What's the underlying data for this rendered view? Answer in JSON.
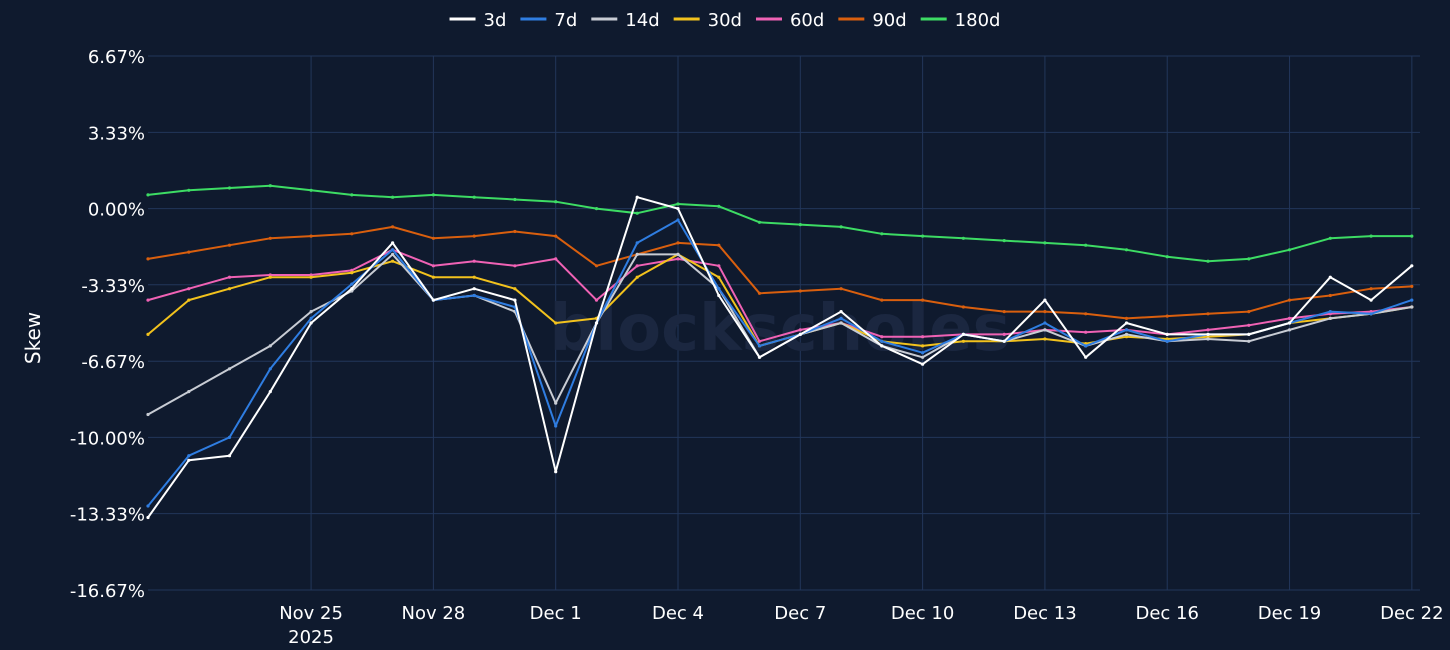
{
  "chart_data": {
    "type": "line",
    "ylabel": "Skew",
    "watermark": "blockscholes",
    "yticks": [
      "6.67%",
      "3.33%",
      "0.00%",
      "-3.33%",
      "-6.67%",
      "-10.00%",
      "-13.33%",
      "-16.67%"
    ],
    "ytick_values": [
      6.67,
      3.33,
      0.0,
      -3.33,
      -6.67,
      -10.0,
      -13.33,
      -16.67
    ],
    "ylim": [
      -16.67,
      6.67
    ],
    "xlim": [
      "2025-11-21",
      "2025-12-22.2"
    ],
    "xticks": [
      {
        "date": "2025-11-25",
        "label": "Nov 25",
        "sublabel": "2025"
      },
      {
        "date": "2025-11-28",
        "label": "Nov 28"
      },
      {
        "date": "2025-12-01",
        "label": "Dec 1"
      },
      {
        "date": "2025-12-04",
        "label": "Dec 4"
      },
      {
        "date": "2025-12-07",
        "label": "Dec 7"
      },
      {
        "date": "2025-12-10",
        "label": "Dec 10"
      },
      {
        "date": "2025-12-13",
        "label": "Dec 13"
      },
      {
        "date": "2025-12-16",
        "label": "Dec 16"
      },
      {
        "date": "2025-12-19",
        "label": "Dec 19"
      },
      {
        "date": "2025-12-22",
        "label": "Dec 22"
      }
    ],
    "grid": true,
    "legend_position": "top",
    "x": [
      "2025-11-21",
      "2025-11-22",
      "2025-11-23",
      "2025-11-24",
      "2025-11-25",
      "2025-11-26",
      "2025-11-27",
      "2025-11-28",
      "2025-11-29",
      "2025-11-30",
      "2025-12-01",
      "2025-12-02",
      "2025-12-03",
      "2025-12-04",
      "2025-12-05",
      "2025-12-06",
      "2025-12-07",
      "2025-12-08",
      "2025-12-09",
      "2025-12-10",
      "2025-12-11",
      "2025-12-12",
      "2025-12-13",
      "2025-12-14",
      "2025-12-15",
      "2025-12-16",
      "2025-12-17",
      "2025-12-18",
      "2025-12-19",
      "2025-12-20",
      "2025-12-21",
      "2025-12-22"
    ],
    "series": [
      {
        "name": "3d",
        "color": "#ffffff",
        "values": [
          -13.5,
          -11.0,
          -10.8,
          -8.0,
          -5.0,
          -3.5,
          -1.5,
          -4.0,
          -3.5,
          -4.0,
          -11.5,
          -5.0,
          0.5,
          0.0,
          -3.8,
          -6.5,
          -5.5,
          -4.5,
          -6.0,
          -6.8,
          -5.5,
          -5.8,
          -4.0,
          -6.5,
          -5.0,
          -5.5,
          -5.5,
          -5.5,
          -5.0,
          -3.0,
          -4.0,
          -2.5
        ]
      },
      {
        "name": "7d",
        "color": "#2f7de1",
        "values": [
          -13.0,
          -10.8,
          -10.0,
          -7.0,
          -4.8,
          -3.3,
          -1.8,
          -4.0,
          -3.8,
          -4.3,
          -9.5,
          -5.0,
          -1.5,
          -0.5,
          -3.5,
          -6.0,
          -5.5,
          -4.8,
          -5.8,
          -6.3,
          -5.5,
          -5.8,
          -5.0,
          -6.0,
          -5.3,
          -5.8,
          -5.5,
          -5.5,
          -5.0,
          -4.5,
          -4.6,
          -4.0
        ]
      },
      {
        "name": "14d",
        "color": "#c8ccd4",
        "values": [
          -9.0,
          -8.0,
          -7.0,
          -6.0,
          -4.5,
          -3.6,
          -2.0,
          -4.0,
          -3.8,
          -4.5,
          -8.5,
          -5.0,
          -2.0,
          -2.0,
          -3.5,
          -6.5,
          -5.5,
          -5.0,
          -6.0,
          -6.5,
          -5.5,
          -5.8,
          -5.3,
          -6.0,
          -5.5,
          -5.8,
          -5.7,
          -5.8,
          -5.3,
          -4.8,
          -4.6,
          -4.3
        ]
      },
      {
        "name": "30d",
        "color": "#f2c21d",
        "values": [
          -5.5,
          -4.0,
          -3.5,
          -3.0,
          -3.0,
          -2.8,
          -2.3,
          -3.0,
          -3.0,
          -3.5,
          -5.0,
          -4.8,
          -3.0,
          -2.0,
          -3.0,
          -6.0,
          -5.5,
          -5.0,
          -5.8,
          -6.0,
          -5.8,
          -5.8,
          -5.7,
          -5.9,
          -5.6,
          -5.7,
          -5.6,
          -5.5,
          -5.0,
          -4.8,
          -4.6,
          -4.3
        ]
      },
      {
        "name": "60d",
        "color": "#f062b5",
        "values": [
          -4.0,
          -3.5,
          -3.0,
          -2.9,
          -2.9,
          -2.7,
          -1.8,
          -2.5,
          -2.3,
          -2.5,
          -2.2,
          -4.0,
          -2.5,
          -2.2,
          -2.5,
          -5.8,
          -5.3,
          -5.0,
          -5.6,
          -5.6,
          -5.5,
          -5.5,
          -5.3,
          -5.4,
          -5.3,
          -5.5,
          -5.3,
          -5.1,
          -4.8,
          -4.6,
          -4.5,
          -4.3
        ]
      },
      {
        "name": "90d",
        "color": "#d95f0e",
        "values": [
          -2.2,
          -1.9,
          -1.6,
          -1.3,
          -1.2,
          -1.1,
          -0.8,
          -1.3,
          -1.2,
          -1.0,
          -1.2,
          -2.5,
          -2.0,
          -1.5,
          -1.6,
          -3.7,
          -3.6,
          -3.5,
          -4.0,
          -4.0,
          -4.3,
          -4.5,
          -4.5,
          -4.6,
          -4.8,
          -4.7,
          -4.6,
          -4.5,
          -4.0,
          -3.8,
          -3.5,
          -3.4
        ]
      },
      {
        "name": "180d",
        "color": "#3ddc64",
        "values": [
          0.6,
          0.8,
          0.9,
          1.0,
          0.8,
          0.6,
          0.5,
          0.6,
          0.5,
          0.4,
          0.3,
          0.0,
          -0.2,
          0.2,
          0.1,
          -0.6,
          -0.7,
          -0.8,
          -1.1,
          -1.2,
          -1.3,
          -1.4,
          -1.5,
          -1.6,
          -1.8,
          -2.1,
          -2.3,
          -2.2,
          -1.8,
          -1.3,
          -1.2,
          -1.2
        ]
      }
    ]
  }
}
